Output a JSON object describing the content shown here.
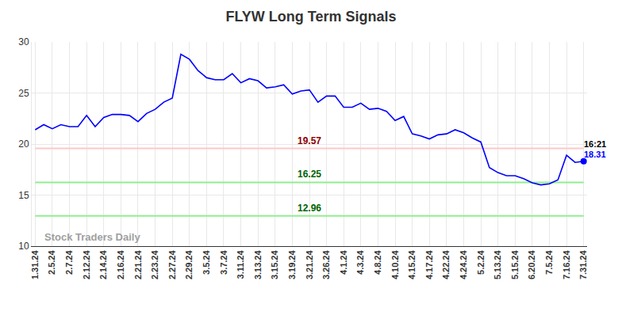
{
  "chart_data": {
    "type": "line",
    "title": "FLYW Long Term Signals",
    "categories": [
      "1.31.24",
      null,
      "2.5.24",
      null,
      "2.7.24",
      null,
      "2.12.24",
      null,
      "2.14.24",
      null,
      "2.16.24",
      null,
      "2.21.24",
      null,
      "2.23.24",
      null,
      "2.27.24",
      null,
      "2.29.24",
      null,
      "3.5.24",
      null,
      "3.7.24",
      null,
      "3.11.24",
      null,
      "3.13.24",
      null,
      "3.15.24",
      null,
      "3.19.24",
      null,
      "3.21.24",
      null,
      "3.26.24",
      null,
      "4.1.24",
      null,
      "4.3.24",
      null,
      "4.8.24",
      null,
      "4.10.24",
      null,
      "4.15.24",
      null,
      "4.17.24",
      null,
      "4.22.24",
      null,
      "4.24.24",
      null,
      "5.2.24",
      null,
      "5.13.24",
      null,
      "5.15.24",
      null,
      "6.20.24",
      null,
      "7.5.24",
      null,
      "7.16.24",
      null,
      "7.31.24"
    ],
    "values": [
      21.4,
      21.9,
      21.5,
      21.9,
      21.7,
      21.7,
      22.8,
      21.7,
      22.6,
      22.9,
      22.9,
      22.8,
      22.2,
      23.0,
      23.4,
      24.1,
      24.5,
      28.8,
      28.3,
      27.2,
      26.5,
      26.3,
      26.3,
      26.9,
      26.0,
      26.4,
      26.2,
      25.5,
      25.6,
      25.8,
      24.9,
      25.2,
      25.3,
      24.1,
      24.7,
      24.7,
      23.6,
      23.6,
      24.0,
      23.4,
      23.5,
      23.2,
      22.3,
      22.7,
      21.0,
      20.8,
      20.5,
      20.9,
      21.0,
      21.4,
      21.1,
      20.6,
      20.2,
      17.7,
      17.2,
      16.9,
      16.9,
      16.6,
      16.2,
      16.0,
      16.1,
      16.5,
      18.9,
      18.2,
      18.31
    ],
    "color": "#0000ff",
    "marker": "last",
    "ylim": [
      10,
      30
    ],
    "yticks": [
      10,
      15,
      20,
      25,
      30
    ],
    "grid": true,
    "levels": [
      {
        "value": 19.57,
        "color": "#ffc8c8",
        "label_color": "#8b0000"
      },
      {
        "value": 16.25,
        "color": "#90ee90",
        "label_color": "#006400"
      },
      {
        "value": 12.96,
        "color": "#90ee90",
        "label_color": "#006400"
      }
    ],
    "time_label": "16:21",
    "watermark": "Stock Traders Daily"
  }
}
